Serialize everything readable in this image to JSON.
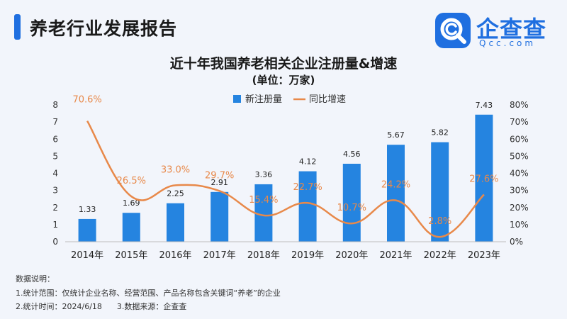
{
  "header": {
    "title": "养老行业发展报告"
  },
  "logo": {
    "name": "企查查",
    "sub": "Qcc.com",
    "icon": "qcc-magnifier-icon"
  },
  "colors": {
    "accent": "#1f6fe0",
    "bar": "#2584e0",
    "line": "#e8894a"
  },
  "chart_data": {
    "type": "bar",
    "title": "近十年我国养老相关企业注册量&增速",
    "subtitle": "(单位：万家)",
    "categories": [
      "2014年",
      "2015年",
      "2016年",
      "2017年",
      "2018年",
      "2019年",
      "2020年",
      "2021年",
      "2022年",
      "2023年"
    ],
    "series": [
      {
        "name": "新注册量",
        "type": "bar",
        "axis": "left",
        "values": [
          1.33,
          1.69,
          2.25,
          2.91,
          3.36,
          4.12,
          4.56,
          5.67,
          5.82,
          7.43
        ],
        "labels": [
          "1.33",
          "1.69",
          "2.25",
          "2.91",
          "3.36",
          "4.12",
          "4.56",
          "5.67",
          "5.82",
          "7.43"
        ]
      },
      {
        "name": "同比增速",
        "type": "line",
        "axis": "right",
        "values": [
          70.6,
          26.5,
          33.0,
          29.7,
          15.4,
          22.7,
          10.7,
          24.2,
          2.8,
          27.6
        ],
        "labels": [
          "70.6%",
          "26.5%",
          "33.0%",
          "29.7%",
          "15.4%",
          "22.7%",
          "10.7%",
          "24.2%",
          "2.8%",
          "27.6%"
        ]
      }
    ],
    "ylim": [
      0,
      8
    ],
    "yticks": [
      "0",
      "1",
      "2",
      "3",
      "4",
      "5",
      "6",
      "7",
      "8"
    ],
    "y2lim": [
      0,
      80
    ],
    "y2ticks": [
      "0%",
      "10%",
      "20%",
      "30%",
      "40%",
      "50%",
      "60%",
      "70%",
      "80%"
    ],
    "legend": "top-center",
    "grid": false
  },
  "notes": {
    "heading": "数据说明：",
    "line1": "1.统计范围：仅统计企业名称、经营范围、产品名称包含关键词“养老”的企业",
    "line2": "2.统计时间：2024/6/18      3.数据来源：企查查"
  }
}
